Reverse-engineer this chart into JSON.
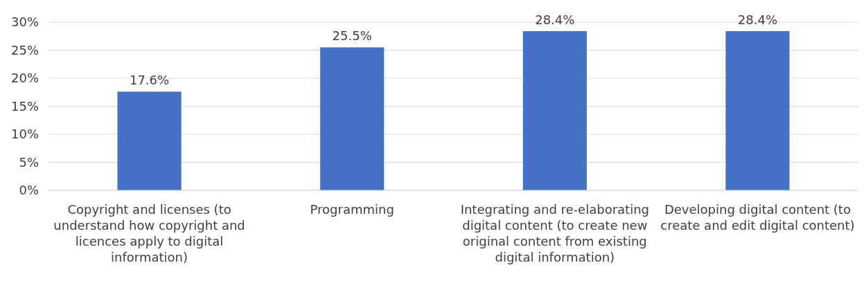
{
  "chart_data": {
    "type": "bar",
    "categories": [
      "Copyright and licenses (to understand how copyright and licences apply to digital information)",
      "Programming",
      "Integrating and re-elaborating digital content (to create new original content from existing digital information)",
      "Developing digital content (to create and edit digital content)"
    ],
    "values": [
      17.6,
      25.5,
      28.4,
      28.4
    ],
    "value_labels": [
      "17.6%",
      "25.5%",
      "28.4%",
      "28.4%"
    ],
    "color": "#4472c4",
    "ylim": [
      0,
      30
    ],
    "yticks": [
      {
        "value": 0,
        "label": "0%"
      },
      {
        "value": 5,
        "label": "5%"
      },
      {
        "value": 10,
        "label": "10%"
      },
      {
        "value": 15,
        "label": "15%"
      },
      {
        "value": 20,
        "label": "20%"
      },
      {
        "value": 25,
        "label": "25%"
      },
      {
        "value": 30,
        "label": "30%"
      }
    ],
    "grid": "y"
  }
}
